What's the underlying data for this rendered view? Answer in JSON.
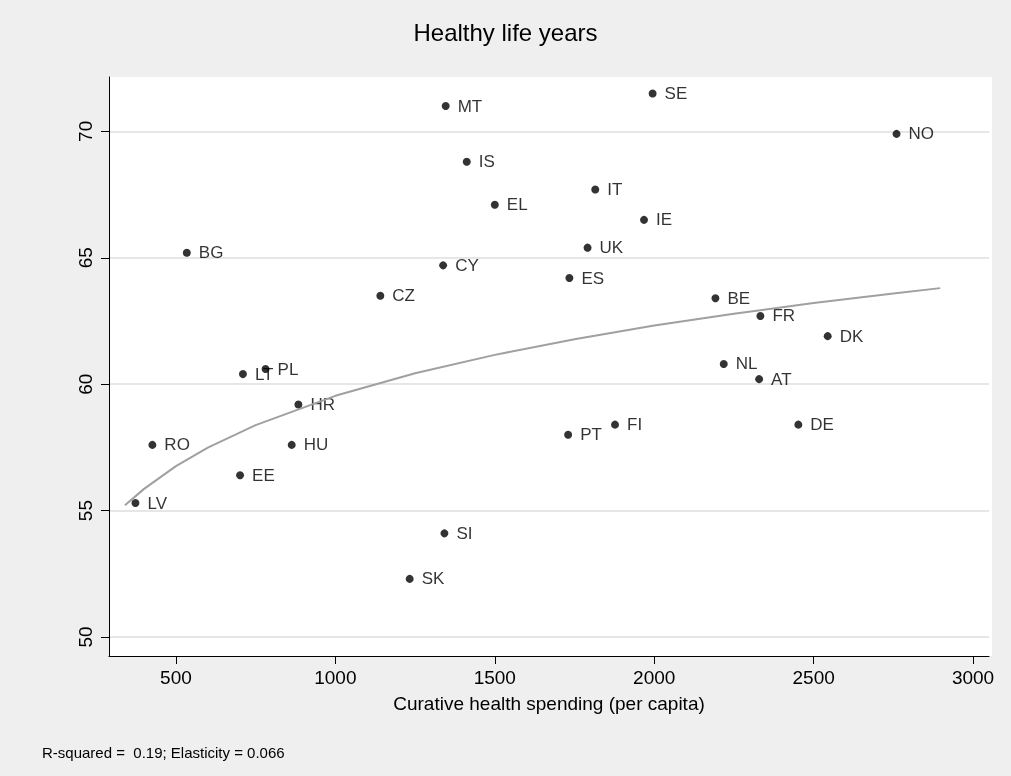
{
  "chart_data": {
    "type": "scatter",
    "title": "Healthy life years",
    "xlabel": "Curative health spending (per capita)",
    "annotations": [
      "R-squared =  0.19; Elasticity = 0.066"
    ],
    "xlim": [
      290,
      3050
    ],
    "xticks": [
      500,
      1000,
      1500,
      2000,
      2500,
      3000
    ],
    "ylim": [
      49.25,
      72.15
    ],
    "yticks": [
      50,
      55,
      60,
      65,
      70
    ],
    "grid": "y",
    "series": [
      {
        "color": "#000000",
        "marker": "circle",
        "x": [
          1346,
          1412,
          1500,
          534,
          1338,
          1141,
          1995,
          2760,
          1815,
          1968,
          1791,
          1734,
          2192,
          2333,
          2544,
          710,
          781,
          884,
          426,
          863,
          701,
          373,
          1342,
          1233,
          2218,
          2329,
          1730,
          1877,
          2452
        ],
        "values": [
          71.0,
          68.8,
          67.1,
          65.2,
          64.7,
          63.5,
          71.5,
          69.9,
          67.7,
          66.5,
          65.4,
          64.2,
          63.4,
          62.7,
          61.9,
          60.4,
          60.6,
          59.2,
          57.6,
          57.6,
          56.4,
          55.3,
          54.1,
          52.3,
          60.8,
          60.2,
          58.0,
          58.4,
          58.4
        ],
        "value_labels": [
          "MT",
          "IS",
          "EL",
          "BG",
          "CY",
          "CZ",
          "SE",
          "NO",
          "IT",
          "IE",
          "UK",
          "ES",
          "BE",
          "FR",
          "DK",
          "LT",
          "PL",
          "HR",
          "RO",
          "HU",
          "EE",
          "LV",
          "SI",
          "SK",
          "NL",
          "AT",
          "PT",
          "FI",
          "DE"
        ]
      },
      {
        "type": "line",
        "color": "#a0a0a0",
        "marker": "none",
        "line_style": "solid",
        "x": [
          340,
          400,
          500,
          600,
          750,
          1000,
          1250,
          1500,
          1750,
          2000,
          2250,
          2500,
          2750,
          2897
        ],
        "values": [
          55.21,
          55.86,
          56.76,
          57.49,
          58.38,
          59.54,
          60.43,
          61.16,
          61.78,
          62.32,
          62.79,
          63.21,
          63.59,
          63.8
        ]
      }
    ]
  }
}
